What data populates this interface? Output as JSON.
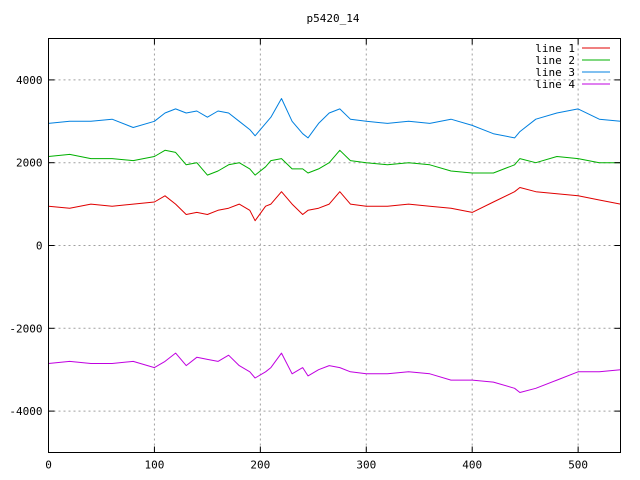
{
  "chart_data": {
    "type": "line",
    "title": "p5420_14",
    "xlabel": "",
    "ylabel": "",
    "xlim": [
      0,
      540
    ],
    "ylim": [
      -5000,
      5000
    ],
    "x_ticks": [
      0,
      100,
      200,
      300,
      400,
      500
    ],
    "y_ticks": [
      -4000,
      -2000,
      0,
      2000,
      4000
    ],
    "grid": true,
    "legend_position": "top-right",
    "series": [
      {
        "name": "line 1",
        "color": "#e00000",
        "x": [
          0,
          20,
          40,
          60,
          80,
          100,
          110,
          120,
          130,
          140,
          150,
          160,
          170,
          180,
          190,
          195,
          205,
          210,
          220,
          230,
          240,
          245,
          255,
          265,
          275,
          285,
          300,
          320,
          340,
          360,
          380,
          400,
          420,
          440,
          445,
          460,
          480,
          500,
          520,
          540
        ],
        "y": [
          950,
          900,
          1000,
          950,
          1000,
          1050,
          1200,
          1000,
          750,
          800,
          750,
          850,
          900,
          1000,
          850,
          600,
          950,
          1000,
          1300,
          1000,
          750,
          850,
          900,
          1000,
          1300,
          1000,
          950,
          950,
          1000,
          950,
          900,
          800,
          1050,
          1300,
          1400,
          1300,
          1250,
          1200,
          1100,
          1000
        ]
      },
      {
        "name": "line 2",
        "color": "#00b000",
        "x": [
          0,
          20,
          40,
          60,
          80,
          100,
          110,
          120,
          130,
          140,
          150,
          160,
          170,
          180,
          190,
          195,
          205,
          210,
          220,
          230,
          240,
          245,
          255,
          265,
          275,
          285,
          300,
          320,
          340,
          360,
          380,
          400,
          420,
          440,
          445,
          460,
          480,
          500,
          520,
          540
        ],
        "y": [
          2150,
          2200,
          2100,
          2100,
          2050,
          2150,
          2300,
          2250,
          1950,
          2000,
          1700,
          1800,
          1950,
          2000,
          1850,
          1700,
          1900,
          2050,
          2100,
          1850,
          1850,
          1750,
          1850,
          2000,
          2300,
          2050,
          2000,
          1950,
          2000,
          1950,
          1800,
          1750,
          1750,
          1950,
          2100,
          2000,
          2150,
          2100,
          2000,
          2000
        ]
      },
      {
        "name": "line 3",
        "color": "#0080e0",
        "x": [
          0,
          20,
          40,
          60,
          80,
          100,
          110,
          120,
          130,
          140,
          150,
          160,
          170,
          180,
          190,
          195,
          205,
          210,
          220,
          230,
          240,
          245,
          255,
          265,
          275,
          285,
          300,
          320,
          340,
          360,
          380,
          400,
          420,
          440,
          445,
          460,
          480,
          500,
          520,
          540
        ],
        "y": [
          2950,
          3000,
          3000,
          3050,
          2850,
          3000,
          3200,
          3300,
          3200,
          3250,
          3100,
          3250,
          3200,
          3000,
          2800,
          2650,
          2950,
          3100,
          3550,
          3000,
          2700,
          2600,
          2950,
          3200,
          3300,
          3050,
          3000,
          2950,
          3000,
          2950,
          3050,
          2900,
          2700,
          2600,
          2750,
          3050,
          3200,
          3300,
          3050,
          3000
        ]
      },
      {
        "name": "line 4",
        "color": "#c000e0",
        "x": [
          0,
          20,
          40,
          60,
          80,
          100,
          110,
          120,
          130,
          140,
          150,
          160,
          170,
          180,
          190,
          195,
          205,
          210,
          220,
          230,
          240,
          245,
          255,
          265,
          275,
          285,
          300,
          320,
          340,
          360,
          380,
          400,
          420,
          440,
          445,
          460,
          480,
          500,
          520,
          540
        ],
        "y": [
          -2850,
          -2800,
          -2850,
          -2850,
          -2800,
          -2950,
          -2800,
          -2600,
          -2900,
          -2700,
          -2750,
          -2800,
          -2650,
          -2900,
          -3050,
          -3200,
          -3050,
          -2950,
          -2600,
          -3100,
          -2950,
          -3150,
          -3000,
          -2900,
          -2950,
          -3050,
          -3100,
          -3100,
          -3050,
          -3100,
          -3250,
          -3250,
          -3300,
          -3450,
          -3550,
          -3450,
          -3250,
          -3050,
          -3050,
          -3000
        ]
      }
    ]
  }
}
